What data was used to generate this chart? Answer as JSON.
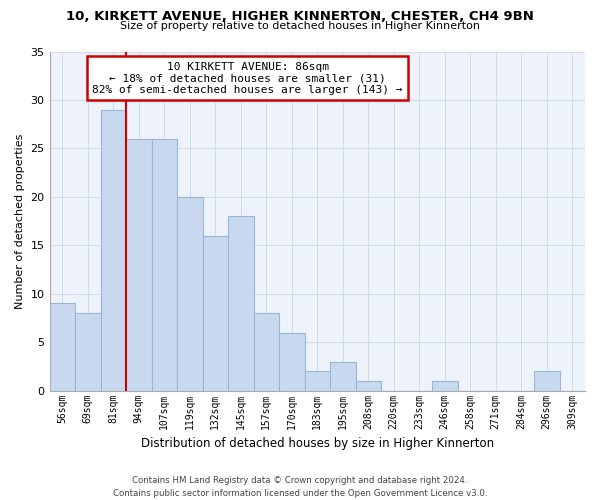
{
  "title1": "10, KIRKETT AVENUE, HIGHER KINNERTON, CHESTER, CH4 9BN",
  "title2": "Size of property relative to detached houses in Higher Kinnerton",
  "xlabel": "Distribution of detached houses by size in Higher Kinnerton",
  "ylabel": "Number of detached properties",
  "bar_labels": [
    "56sqm",
    "69sqm",
    "81sqm",
    "94sqm",
    "107sqm",
    "119sqm",
    "132sqm",
    "145sqm",
    "157sqm",
    "170sqm",
    "183sqm",
    "195sqm",
    "208sqm",
    "220sqm",
    "233sqm",
    "246sqm",
    "258sqm",
    "271sqm",
    "284sqm",
    "296sqm",
    "309sqm"
  ],
  "bar_values": [
    9,
    8,
    29,
    26,
    26,
    20,
    16,
    18,
    8,
    6,
    2,
    3,
    1,
    0,
    0,
    1,
    0,
    0,
    0,
    2,
    0
  ],
  "bar_color": "#c8d9ef",
  "bar_edge_color": "#9ab5d5",
  "vline_color": "#cc0000",
  "ylim": [
    0,
    35
  ],
  "yticks": [
    0,
    5,
    10,
    15,
    20,
    25,
    30,
    35
  ],
  "annotation_title": "10 KIRKETT AVENUE: 86sqm",
  "annotation_line1": "← 18% of detached houses are smaller (31)",
  "annotation_line2": "82% of semi-detached houses are larger (143) →",
  "annotation_box_color": "#ffffff",
  "annotation_box_edge": "#cc0000",
  "footnote1": "Contains HM Land Registry data © Crown copyright and database right 2024.",
  "footnote2": "Contains public sector information licensed under the Open Government Licence v3.0.",
  "grid_color": "#d0dcea",
  "bg_color": "#eef3fb"
}
